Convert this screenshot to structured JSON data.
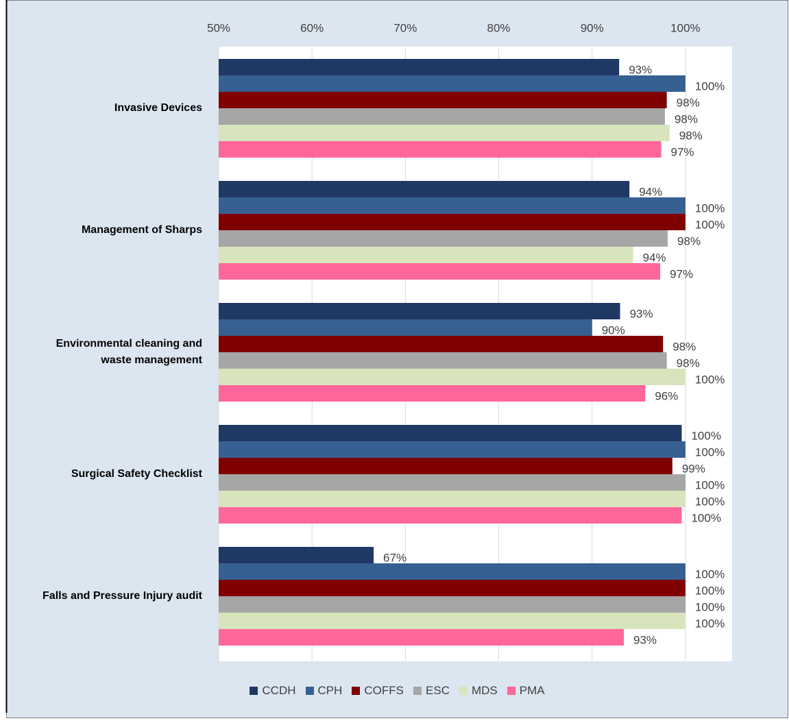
{
  "chart_data": {
    "type": "bar",
    "orientation": "horizontal",
    "categories": [
      "Invasive Devices",
      "Management of Sharps",
      "Environmental cleaning and waste management",
      "Surgical Safety Checklist",
      "Falls and Pressure Injury audit"
    ],
    "series": [
      {
        "name": "CCDH",
        "color": "#1f3864",
        "values": [
          92.9,
          94.0,
          93.0,
          99.6,
          66.6
        ],
        "value_labels": [
          "93%",
          "94%",
          "93%",
          "100%",
          "67%"
        ]
      },
      {
        "name": "CPH",
        "color": "#376092",
        "values": [
          100,
          100,
          90.0,
          100,
          100
        ],
        "value_labels": [
          "100%",
          "100%",
          "90%",
          "100%",
          "100%"
        ]
      },
      {
        "name": "COFFS",
        "color": "#7f0000",
        "values": [
          98.0,
          100,
          97.6,
          98.6,
          100
        ],
        "value_labels": [
          "98%",
          "100%",
          "98%",
          "99%",
          "100%"
        ]
      },
      {
        "name": "ESC",
        "color": "#a6a6a6",
        "values": [
          97.8,
          98.1,
          98.0,
          100,
          100
        ],
        "value_labels": [
          "98%",
          "98%",
          "98%",
          "100%",
          "100%"
        ]
      },
      {
        "name": "MDS",
        "color": "#d8e4bc",
        "values": [
          98.3,
          94.4,
          100,
          100,
          100
        ],
        "value_labels": [
          "98%",
          "94%",
          "100%",
          "100%",
          "100%"
        ]
      },
      {
        "name": "PMA",
        "color": "#ff6699",
        "values": [
          97.4,
          97.3,
          95.7,
          99.6,
          93.4
        ],
        "value_labels": [
          "97%",
          "97%",
          "96%",
          "100%",
          "93%"
        ]
      }
    ],
    "xlim": [
      50,
      105
    ],
    "xticks": [
      {
        "value": 50,
        "label": "50%"
      },
      {
        "value": 60,
        "label": "60%"
      },
      {
        "value": 70,
        "label": "70%"
      },
      {
        "value": 80,
        "label": "80%"
      },
      {
        "value": 90,
        "label": "90%"
      },
      {
        "value": 100,
        "label": "100%"
      }
    ],
    "grid": true,
    "legend": "bottom"
  }
}
